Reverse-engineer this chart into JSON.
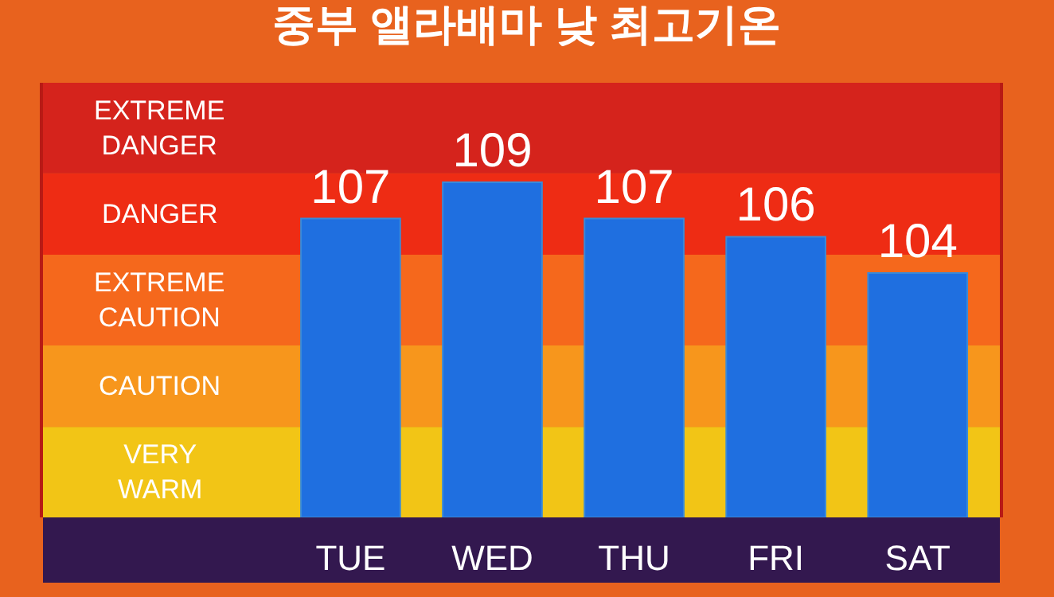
{
  "chart_data": {
    "type": "bar",
    "title": "중부 앨라배마 낮 최고기온",
    "categories": [
      "TUE",
      "WED",
      "THU",
      "FRI",
      "SAT"
    ],
    "values": [
      107,
      109,
      107,
      106,
      104
    ],
    "color": "#1f6fe0",
    "data_labels": true,
    "ylim": [
      90.5,
      114.5
    ],
    "tick_labels": "x",
    "grid": false,
    "legend": false,
    "bands": [
      {
        "axis": "y",
        "from": 90.5,
        "to": 95.5,
        "label": "VERY\nWARM",
        "color": "#f2c516"
      },
      {
        "axis": "y",
        "from": 95.5,
        "to": 100,
        "label": "CAUTION",
        "color": "#f7961c"
      },
      {
        "axis": "y",
        "from": 100,
        "to": 105,
        "label": "EXTREME\nCAUTION",
        "color": "#f5681c"
      },
      {
        "axis": "y",
        "from": 105,
        "to": 109.5,
        "label": "DANGER",
        "color": "#ee2c14"
      },
      {
        "axis": "y",
        "from": 109.5,
        "to": 114.5,
        "label": "EXTREME\nDANGER",
        "color": "#d5231c"
      }
    ]
  }
}
